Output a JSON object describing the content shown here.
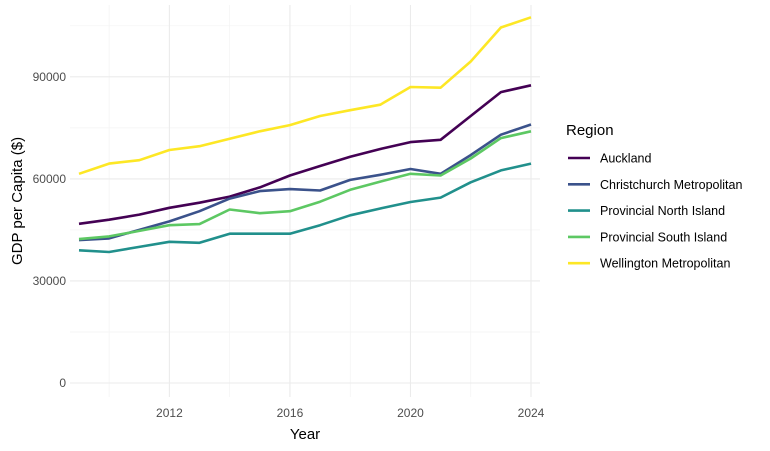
{
  "chart_data": {
    "type": "line",
    "title": "",
    "xlabel": "Year",
    "ylabel": "GDP per Capita ($)",
    "xlim": [
      2009,
      2024
    ],
    "ylim": [
      0,
      107000
    ],
    "x_ticks": [
      2012,
      2016,
      2020,
      2024
    ],
    "y_ticks": [
      0,
      30000,
      60000,
      90000
    ],
    "grid": true,
    "legend": {
      "title": "Region",
      "position": "right"
    },
    "x": [
      2009,
      2010,
      2011,
      2012,
      2013,
      2014,
      2015,
      2016,
      2017,
      2018,
      2019,
      2020,
      2021,
      2022,
      2023,
      2024
    ],
    "series": [
      {
        "name": "Auckland",
        "color": "#440154",
        "values": [
          46800,
          48000,
          49500,
          51500,
          53000,
          54800,
          57500,
          61000,
          63800,
          66500,
          68800,
          70800,
          71500,
          78500,
          85500,
          87500
        ]
      },
      {
        "name": "Christchurch Metropolitan",
        "color": "#3b528b",
        "values": [
          42000,
          42500,
          45000,
          47500,
          50500,
          54200,
          56400,
          57000,
          56600,
          59700,
          61200,
          62900,
          61500,
          67000,
          73000,
          76000
        ]
      },
      {
        "name": "Provincial North Island",
        "color": "#21908c",
        "values": [
          39000,
          38500,
          40000,
          41500,
          41200,
          43900,
          43900,
          43900,
          46400,
          49300,
          51300,
          53200,
          54500,
          59000,
          62500,
          64500
        ]
      },
      {
        "name": "Provincial South Island",
        "color": "#5dc863",
        "values": [
          42300,
          43100,
          44700,
          46400,
          46700,
          51000,
          49900,
          50500,
          53300,
          56800,
          59200,
          61500,
          61000,
          66000,
          72000,
          74000
        ]
      },
      {
        "name": "Wellington Metropolitan",
        "color": "#fde725",
        "values": [
          61500,
          64500,
          65500,
          68500,
          69600,
          71800,
          74000,
          75800,
          78500,
          80200,
          81800,
          87000,
          86800,
          94500,
          104500,
          107500
        ]
      }
    ]
  }
}
